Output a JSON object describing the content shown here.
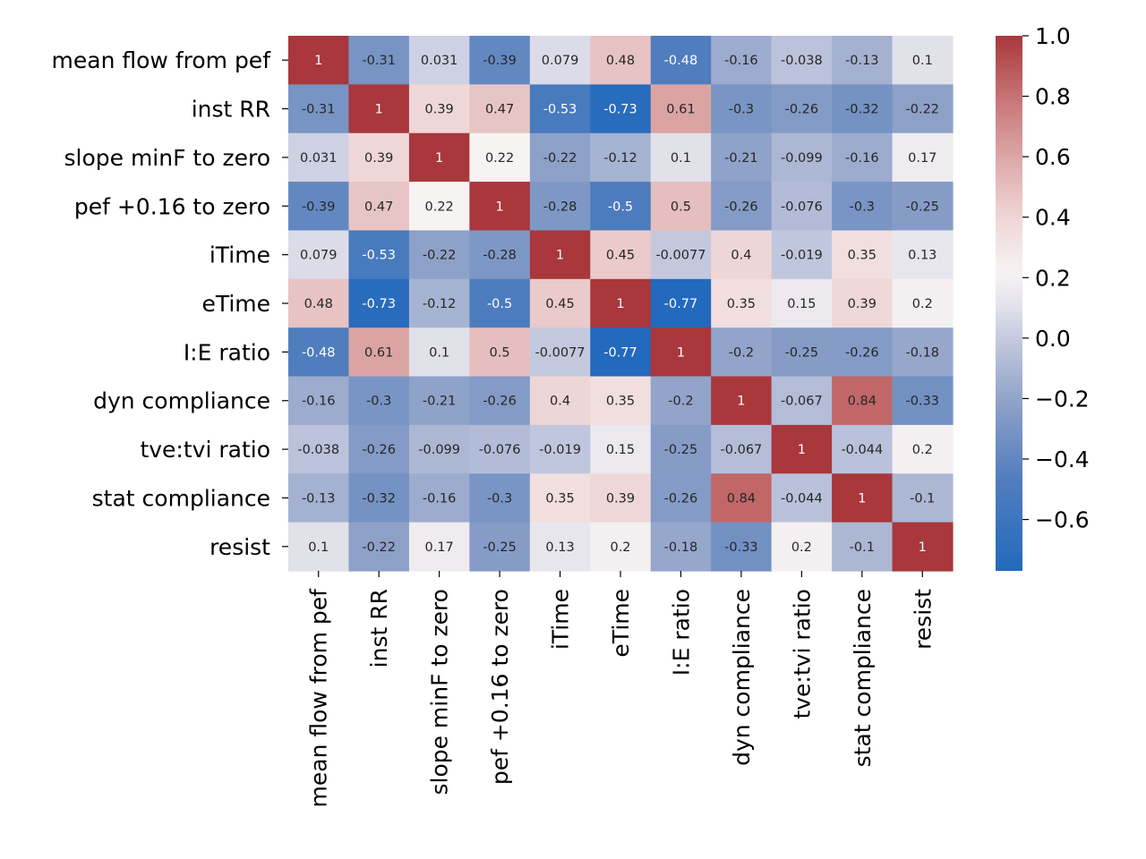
{
  "chart_data": {
    "type": "heatmap",
    "title": "",
    "xlabel": "",
    "ylabel": "",
    "rows": [
      "mean flow from pef",
      "inst RR",
      "slope minF to zero",
      "pef +0.16 to zero",
      "iTime",
      "eTime",
      "I:E ratio",
      "dyn compliance",
      "tve:tvi ratio",
      "stat compliance",
      "resist"
    ],
    "columns": [
      "mean flow from pef",
      "inst RR",
      "slope minF to zero",
      "pef +0.16 to zero",
      "iTime",
      "eTime",
      "I:E ratio",
      "dyn compliance",
      "tve:tvi ratio",
      "stat compliance",
      "resist"
    ],
    "values": [
      [
        1,
        -0.31,
        0.031,
        -0.39,
        0.079,
        0.48,
        -0.48,
        -0.16,
        -0.038,
        -0.13,
        0.1
      ],
      [
        -0.31,
        1,
        0.39,
        0.47,
        -0.53,
        -0.73,
        0.61,
        -0.3,
        -0.26,
        -0.32,
        -0.22
      ],
      [
        0.031,
        0.39,
        1,
        0.22,
        -0.22,
        -0.12,
        0.1,
        -0.21,
        -0.099,
        -0.16,
        0.17
      ],
      [
        -0.39,
        0.47,
        0.22,
        1,
        -0.28,
        -0.5,
        0.5,
        -0.26,
        -0.076,
        -0.3,
        -0.25
      ],
      [
        0.079,
        -0.53,
        -0.22,
        -0.28,
        1,
        0.45,
        -0.0077,
        0.4,
        -0.019,
        0.35,
        0.13
      ],
      [
        0.48,
        -0.73,
        -0.12,
        -0.5,
        0.45,
        1,
        -0.77,
        0.35,
        0.15,
        0.39,
        0.2
      ],
      [
        -0.48,
        0.61,
        0.1,
        0.5,
        -0.0077,
        -0.77,
        1,
        -0.2,
        -0.25,
        -0.26,
        -0.18
      ],
      [
        -0.16,
        -0.3,
        -0.21,
        -0.26,
        0.4,
        0.35,
        -0.2,
        1,
        -0.067,
        0.84,
        -0.33
      ],
      [
        -0.038,
        -0.26,
        -0.099,
        -0.076,
        -0.019,
        0.15,
        -0.25,
        -0.067,
        1,
        -0.044,
        0.2
      ],
      [
        -0.13,
        -0.32,
        -0.16,
        -0.3,
        0.35,
        0.39,
        -0.26,
        0.84,
        -0.044,
        1,
        -0.1
      ],
      [
        0.1,
        -0.22,
        0.17,
        -0.25,
        0.13,
        0.2,
        -0.18,
        -0.33,
        0.2,
        -0.1,
        1
      ]
    ],
    "colorbar": {
      "min": -0.77,
      "max": 1.0,
      "ticks": [
        "1.0",
        "0.8",
        "0.6",
        "0.4",
        "0.2",
        "0.0",
        "−0.2",
        "−0.4",
        "−0.6"
      ],
      "tick_values": [
        1.0,
        0.8,
        0.6,
        0.4,
        0.2,
        0.0,
        -0.2,
        -0.4,
        -0.6
      ],
      "colormap": "vlag",
      "colors": {
        "low": "#2369bd",
        "mid": "#f7f3f3",
        "high": "#a9373b"
      }
    }
  }
}
